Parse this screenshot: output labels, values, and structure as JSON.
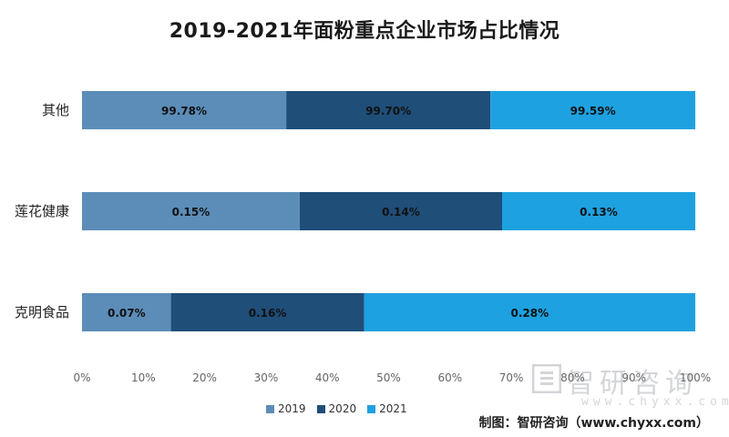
{
  "chart_data": {
    "type": "bar",
    "orientation": "horizontal",
    "stacked": true,
    "normalized": true,
    "title": "2019-2021年面粉重点企业市场占比情况",
    "categories": [
      "其他",
      "莲花健康",
      "克明食品"
    ],
    "series": [
      {
        "name": "2019",
        "color": "#5b8db8",
        "values": [
          33.3,
          35.5,
          14.5
        ],
        "labels": [
          "99.78%",
          "0.15%",
          "0.07%"
        ]
      },
      {
        "name": "2020",
        "color": "#1f4e79",
        "values": [
          33.3,
          33.0,
          31.5
        ],
        "labels": [
          "99.70%",
          "0.14%",
          "0.16%"
        ]
      },
      {
        "name": "2021",
        "color": "#1ea1e0",
        "values": [
          33.4,
          31.5,
          54.0
        ],
        "labels": [
          "99.59%",
          "0.13%",
          "0.28%"
        ]
      }
    ],
    "xlim": [
      0,
      100
    ],
    "x_ticks": [
      "0%",
      "10%",
      "20%",
      "30%",
      "40%",
      "50%",
      "60%",
      "70%",
      "80%",
      "90%",
      "100%"
    ],
    "grid": false,
    "legend": "bottom"
  },
  "watermark": {
    "name": "智研咨询",
    "url": "www.chyxx.com"
  },
  "source_note": "制图：智研咨询（www.chyxx.com）"
}
